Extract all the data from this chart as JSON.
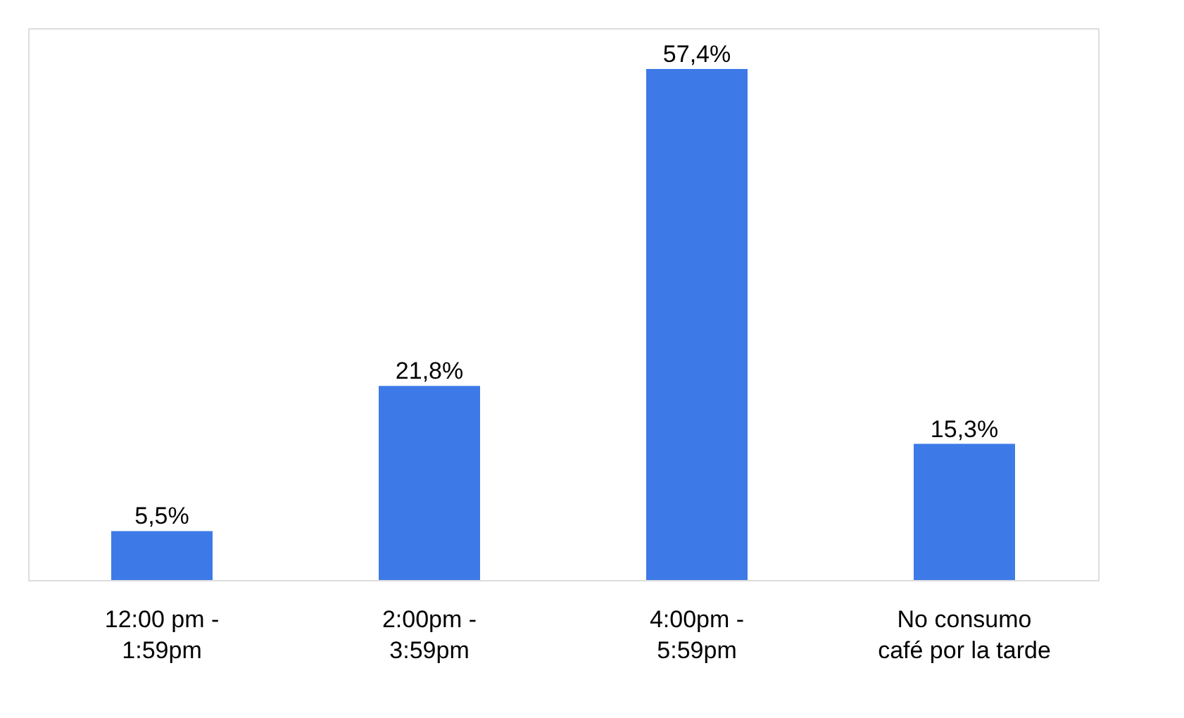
{
  "chart_data": {
    "type": "bar",
    "categories": [
      "12:00 pm -\n1:59pm",
      "2:00pm -\n3:59pm",
      "4:00pm -\n5:59pm",
      "No consumo\ncafé por la tarde"
    ],
    "values": [
      5.5,
      21.8,
      57.4,
      15.3
    ],
    "value_labels": [
      "5,5%",
      "21,8%",
      "57,4%",
      "15,3%"
    ],
    "color": "#3d7ae8",
    "grid": false
  }
}
